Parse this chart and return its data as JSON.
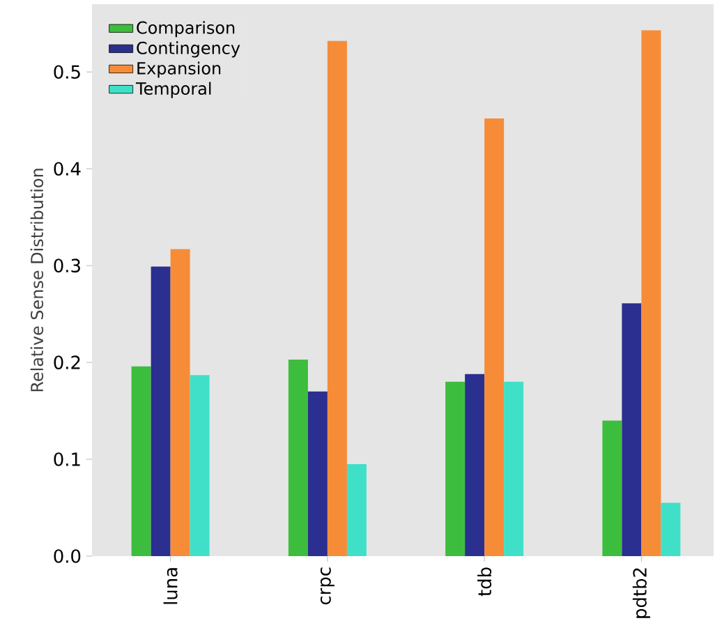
{
  "chart_data": {
    "type": "bar",
    "ylabel": "Relative Sense Distribution",
    "categories": [
      "luna",
      "crpc",
      "tdb",
      "pdtb2"
    ],
    "series": [
      {
        "name": "Comparison",
        "color": "#3dbd3d",
        "values": [
          0.196,
          0.203,
          0.18,
          0.14
        ]
      },
      {
        "name": "Contingency",
        "color": "#2b2f8f",
        "values": [
          0.299,
          0.17,
          0.188,
          0.261
        ]
      },
      {
        "name": "Expansion",
        "color": "#f78c38",
        "values": [
          0.317,
          0.532,
          0.452,
          0.543
        ]
      },
      {
        "name": "Temporal",
        "color": "#40e0c8",
        "values": [
          0.187,
          0.095,
          0.18,
          0.055
        ]
      }
    ],
    "ylim": [
      0,
      0.57
    ],
    "yticks": [
      {
        "value": 0,
        "label": "0.0"
      },
      0.1,
      0.2,
      0.3,
      0.4,
      0.5
    ],
    "grid": false,
    "legend": "top left"
  }
}
